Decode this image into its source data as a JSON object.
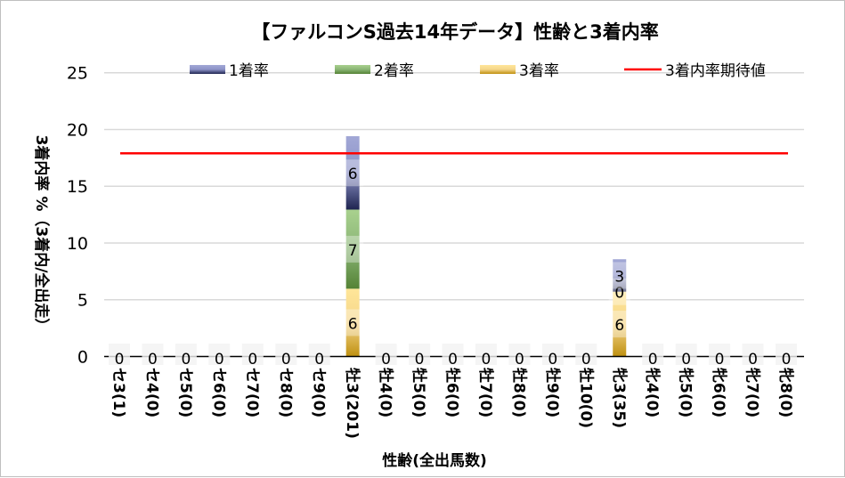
{
  "chart_data": {
    "type": "bar",
    "stacked": true,
    "title": "【ファルコンS過去14年データ】性齢と3着内率",
    "xlabel": "性齢(全出馬数)",
    "ylabel": "3着内率 %（3着内/全出走）",
    "ylim": [
      0,
      25
    ],
    "yticks": [
      0,
      5,
      10,
      15,
      20,
      25
    ],
    "grid": true,
    "legend_position": "top",
    "categories": [
      "セ3(1)",
      "セ4(0)",
      "セ5(0)",
      "セ6(0)",
      "セ7(0)",
      "セ8(0)",
      "セ9(0)",
      "牡3(201)",
      "牡4(0)",
      "牡5(0)",
      "牡6(0)",
      "牡7(0)",
      "牡8(0)",
      "牡9(0)",
      "牡10(0)",
      "牝3(35)",
      "牝4(0)",
      "牝5(0)",
      "牝6(0)",
      "牝7(0)",
      "牝8(0)"
    ],
    "series": [
      {
        "name": "3着率",
        "color": "#c9961a",
        "values": [
          0,
          0,
          0,
          0,
          0,
          0,
          0,
          5.97,
          0,
          0,
          0,
          0,
          0,
          0,
          0,
          5.71,
          0,
          0,
          0,
          0,
          0
        ],
        "labels": [
          "0",
          "0",
          "0",
          "0",
          "0",
          "0",
          "0",
          "6",
          "0",
          "0",
          "0",
          "0",
          "0",
          "0",
          "0",
          "6",
          "0",
          "0",
          "0",
          "0",
          "0"
        ]
      },
      {
        "name": "2着率",
        "color": "#5a8a3a",
        "values": [
          0,
          0,
          0,
          0,
          0,
          0,
          0,
          6.97,
          0,
          0,
          0,
          0,
          0,
          0,
          0,
          0,
          0,
          0,
          0,
          0,
          0
        ],
        "labels": [
          "0",
          "0",
          "0",
          "0",
          "0",
          "0",
          "0",
          "7",
          "0",
          "0",
          "0",
          "0",
          "0",
          "0",
          "0",
          "0",
          "0",
          "0",
          "0",
          "0",
          "0"
        ]
      },
      {
        "name": "1着率",
        "color": "#3a4590",
        "values": [
          0,
          0,
          0,
          0,
          0,
          0,
          0,
          6.47,
          0,
          0,
          0,
          0,
          0,
          0,
          0,
          2.86,
          0,
          0,
          0,
          0,
          0
        ],
        "labels": [
          "0",
          "0",
          "0",
          "0",
          "0",
          "0",
          "0",
          "6",
          "0",
          "0",
          "0",
          "0",
          "0",
          "0",
          "0",
          "3",
          "0",
          "0",
          "0",
          "0",
          "0"
        ]
      }
    ],
    "reference_line": {
      "name": "3着内率期待値",
      "value": 17.9,
      "color": "#ff0000"
    }
  }
}
